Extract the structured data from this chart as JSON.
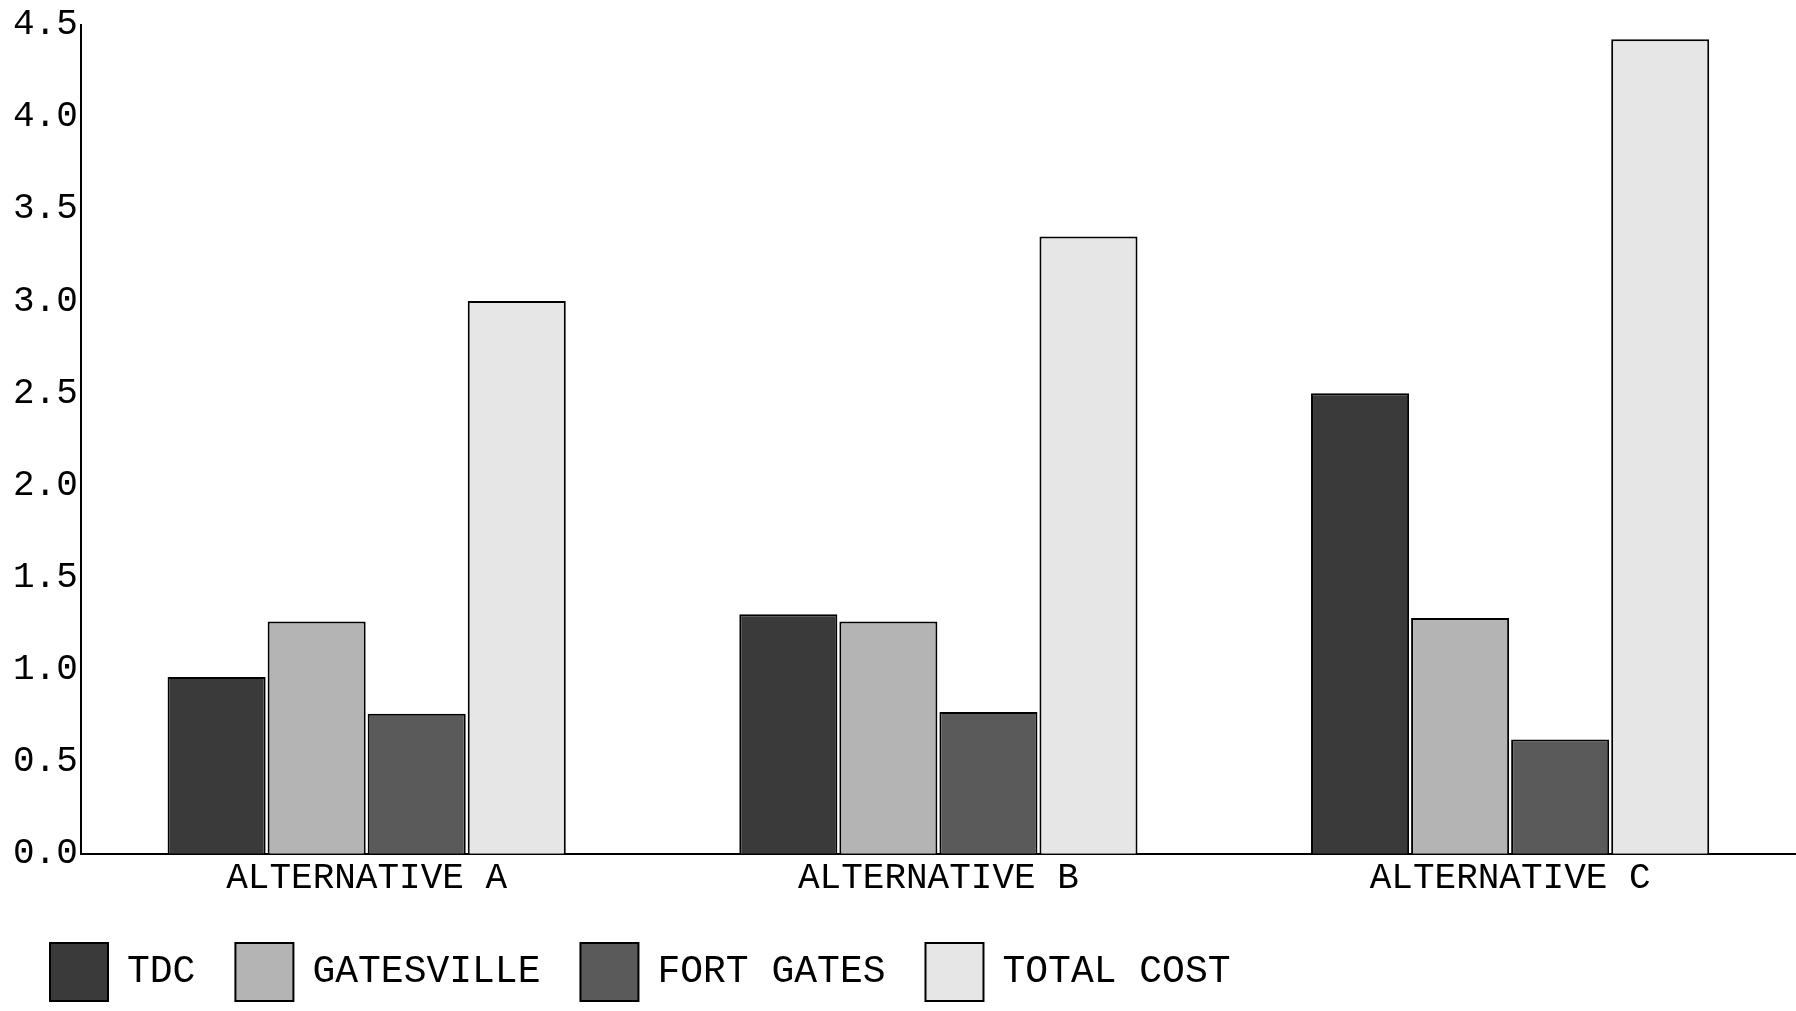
{
  "chart_data": {
    "type": "bar",
    "categories": [
      "ALTERNATIVE A",
      "ALTERNATIVE B",
      "ALTERNATIVE C"
    ],
    "series": [
      {
        "name": "TDC",
        "color": "#3a3a3a",
        "values": [
          0.96,
          1.3,
          2.5
        ]
      },
      {
        "name": "GATESVILLE",
        "color": "#b4b4b4",
        "values": [
          1.26,
          1.26,
          1.28
        ]
      },
      {
        "name": "FORT GATES",
        "color": "#5a5a5a",
        "values": [
          0.76,
          0.77,
          0.62
        ]
      },
      {
        "name": "TOTAL COST",
        "color": "#e6e6e6",
        "values": [
          3.0,
          3.35,
          4.42
        ]
      }
    ],
    "ylim": [
      0,
      4.5
    ],
    "yticks": [
      {
        "value": 0,
        "label": "0.0"
      },
      {
        "value": 0.5,
        "label": "0.5"
      },
      {
        "value": 1,
        "label": "1.0"
      },
      {
        "value": 1.5,
        "label": "1.5"
      },
      {
        "value": 2,
        "label": "2.0"
      },
      {
        "value": 2.5,
        "label": "2.5"
      },
      {
        "value": 3,
        "label": "3.0"
      },
      {
        "value": 3.5,
        "label": "3.5"
      },
      {
        "value": 4,
        "label": "4.0"
      },
      {
        "value": 4.5,
        "label": "4.5"
      }
    ],
    "grid": false,
    "legend": "bottom left"
  }
}
